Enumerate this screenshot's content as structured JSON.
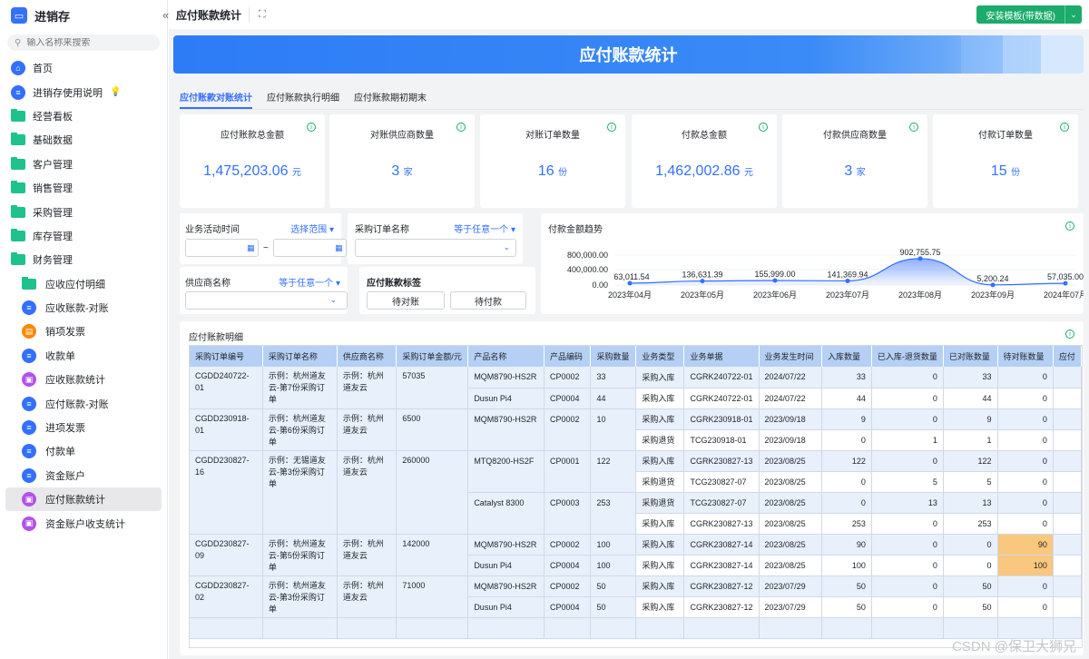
{
  "app": {
    "title": "进销存"
  },
  "search": {
    "placeholder": "输入名称来搜索"
  },
  "nav": [
    {
      "label": "首页",
      "icon": "home-icon",
      "type": "home"
    },
    {
      "label": "进销存使用说明",
      "icon": "doc-icon",
      "type": "doc",
      "badge": "bulb"
    },
    {
      "label": "经营看板",
      "icon": "folder-icon",
      "type": "folder"
    },
    {
      "label": "基础数据",
      "icon": "folder-icon",
      "type": "folder"
    },
    {
      "label": "客户管理",
      "icon": "folder-icon",
      "type": "folder"
    },
    {
      "label": "销售管理",
      "icon": "folder-icon",
      "type": "folder"
    },
    {
      "label": "采购管理",
      "icon": "folder-icon",
      "type": "folder"
    },
    {
      "label": "库存管理",
      "icon": "folder-icon",
      "type": "folder"
    },
    {
      "label": "财务管理",
      "icon": "folder-open-icon",
      "type": "folder"
    },
    {
      "label": "应收应付明细",
      "icon": "folder-icon",
      "type": "subfolder"
    },
    {
      "label": "应收账款-对账",
      "icon": "doc-icon",
      "type": "blue"
    },
    {
      "label": "销项发票",
      "icon": "invoice-icon",
      "type": "orange"
    },
    {
      "label": "收款单",
      "icon": "doc-icon",
      "type": "blue"
    },
    {
      "label": "应收账款统计",
      "icon": "dashboard-icon",
      "type": "purple"
    },
    {
      "label": "应付账款-对账",
      "icon": "doc-icon",
      "type": "blue"
    },
    {
      "label": "进项发票",
      "icon": "doc-icon",
      "type": "blue"
    },
    {
      "label": "付款单",
      "icon": "doc-icon",
      "type": "blue"
    },
    {
      "label": "资金账户",
      "icon": "doc-icon",
      "type": "blue"
    },
    {
      "label": "应付账款统计",
      "icon": "dashboard-icon",
      "type": "purple",
      "active": true
    },
    {
      "label": "资金账户收支统计",
      "icon": "dashboard-icon",
      "type": "purple"
    }
  ],
  "topbar": {
    "title": "应付账款统计",
    "install_label": "安装模板(带数据)"
  },
  "banner": {
    "title": "应付账款统计"
  },
  "tabs": [
    "应付账款对账统计",
    "应付账款执行明细",
    "应付账款期初期末"
  ],
  "kpis": [
    {
      "label": "应付账款总金额",
      "value": "1,475,203.06",
      "unit": "元"
    },
    {
      "label": "对账供应商数量",
      "value": "3",
      "unit": "家"
    },
    {
      "label": "对账订单数量",
      "value": "16",
      "unit": "份"
    },
    {
      "label": "付款总金额",
      "value": "1,462,002.86",
      "unit": "元"
    },
    {
      "label": "付款供应商数量",
      "value": "3",
      "unit": "家"
    },
    {
      "label": "付款订单数量",
      "value": "15",
      "unit": "份"
    }
  ],
  "filters": {
    "time_label": "业务活动时间",
    "time_mode": "选择范围",
    "po_label": "采购订单名称",
    "po_mode": "等于任意一个",
    "supplier_label": "供应商名称",
    "supplier_mode": "等于任意一个",
    "tag_label": "应付账款标签",
    "tag_btn1": "待对账",
    "tag_btn2": "待付款",
    "range_sep": "~"
  },
  "chart_data": {
    "type": "area",
    "title": "付款金额趋势",
    "categories": [
      "2023年04月",
      "2023年05月",
      "2023年06月",
      "2023年07月",
      "2023年08月",
      "2023年09月",
      "2024年07月"
    ],
    "values": [
      63011.54,
      136631.39,
      155999.0,
      141369.94,
      902755.75,
      5200.24,
      57035.0
    ],
    "data_labels": [
      "63,011.54",
      "136,631.39",
      "155,999.00",
      "141,369.94",
      "902,755.75",
      "5,200.24",
      "57,035.00"
    ],
    "yticks": [
      "800,000.00",
      "400,000.00",
      "0.00"
    ],
    "ylim": [
      0,
      900000
    ],
    "color": "#3370ff"
  },
  "table": {
    "title": "应付账款明细",
    "columns": [
      "采购订单编号",
      "采购订单名称",
      "供应商名称",
      "采购订单金额/元",
      "产品名称",
      "产品编码",
      "采购数量",
      "业务类型",
      "业务单据",
      "业务发生时间",
      "入库数量",
      "已入库-退货数量",
      "已对账数量",
      "待对账数量",
      "应付"
    ],
    "groups": [
      {
        "id": "CGDD240722-01",
        "name": "示例：杭州道友云-第7份采购订单",
        "supplier": "示例：杭州道友云",
        "amount": "57035",
        "products": [
          {
            "name": "MQM8790-HS2R",
            "code": "CP0002",
            "qty": "33",
            "rows": [
              [
                "采购入库",
                "CGRK240722-01",
                "2024/07/22",
                "33",
                "0",
                "33",
                "0"
              ]
            ]
          },
          {
            "name": "Dusun Pi4",
            "code": "CP0004",
            "qty": "44",
            "rows": [
              [
                "采购入库",
                "CGRK240722-01",
                "2024/07/22",
                "44",
                "0",
                "44",
                "0"
              ]
            ]
          }
        ]
      },
      {
        "id": "CGDD230918-01",
        "name": "示例：杭州道友云-第6份采购订单",
        "supplier": "示例：杭州道友云",
        "amount": "6500",
        "products": [
          {
            "name": "MQM8790-HS2R",
            "code": "CP0002",
            "qty": "10",
            "rows": [
              [
                "采购入库",
                "CGRK230918-01",
                "2023/09/18",
                "9",
                "0",
                "9",
                "0"
              ],
              [
                "采购退货",
                "TCG230918-01",
                "2023/09/18",
                "0",
                "1",
                "1",
                "0"
              ]
            ]
          }
        ]
      },
      {
        "id": "CGDD230827-16",
        "name": "示例：无锡道友云-第3份采购订单",
        "supplier": "示例：杭州道友云",
        "amount": "260000",
        "products": [
          {
            "name": "MTQ8200-HS2F",
            "code": "CP0001",
            "qty": "122",
            "rows": [
              [
                "采购入库",
                "CGRK230827-13",
                "2023/08/25",
                "122",
                "0",
                "122",
                "0"
              ],
              [
                "采购退货",
                "TCG230827-07",
                "2023/08/25",
                "0",
                "5",
                "5",
                "0"
              ]
            ]
          },
          {
            "name": "Catalyst 8300",
            "code": "CP0003",
            "qty": "253",
            "rows": [
              [
                "采购退货",
                "TCG230827-07",
                "2023/08/25",
                "0",
                "13",
                "13",
                "0"
              ],
              [
                "采购入库",
                "CGRK230827-13",
                "2023/08/25",
                "253",
                "0",
                "253",
                "0"
              ]
            ]
          }
        ]
      },
      {
        "id": "CGDD230827-09",
        "name": "示例：杭州道友云-第5份采购订单",
        "supplier": "示例：杭州道友云",
        "amount": "142000",
        "products": [
          {
            "name": "MQM8790-HS2R",
            "code": "CP0002",
            "qty": "100",
            "rows": [
              [
                "采购入库",
                "CGRK230827-14",
                "2023/08/25",
                "90",
                "0",
                "0",
                "90"
              ]
            ]
          },
          {
            "name": "Dusun Pi4",
            "code": "CP0004",
            "qty": "100",
            "rows": [
              [
                "采购入库",
                "CGRK230827-14",
                "2023/08/25",
                "100",
                "0",
                "0",
                "100"
              ]
            ]
          }
        ]
      },
      {
        "id": "CGDD230827-02",
        "name": "示例：杭州道友云-第3份采购订单",
        "supplier": "示例：杭州道友云",
        "amount": "71000",
        "products": [
          {
            "name": "MQM8790-HS2R",
            "code": "CP0002",
            "qty": "50",
            "rows": [
              [
                "采购入库",
                "CGRK230827-12",
                "2023/07/29",
                "50",
                "0",
                "50",
                "0"
              ]
            ]
          },
          {
            "name": "Dusun Pi4",
            "code": "CP0004",
            "qty": "50",
            "rows": [
              [
                "采购入库",
                "CGRK230827-12",
                "2023/07/29",
                "50",
                "0",
                "50",
                "0"
              ]
            ]
          }
        ]
      }
    ],
    "highlight_color": "#f9c77d"
  },
  "watermark": "CSDN @保卫大狮兄"
}
